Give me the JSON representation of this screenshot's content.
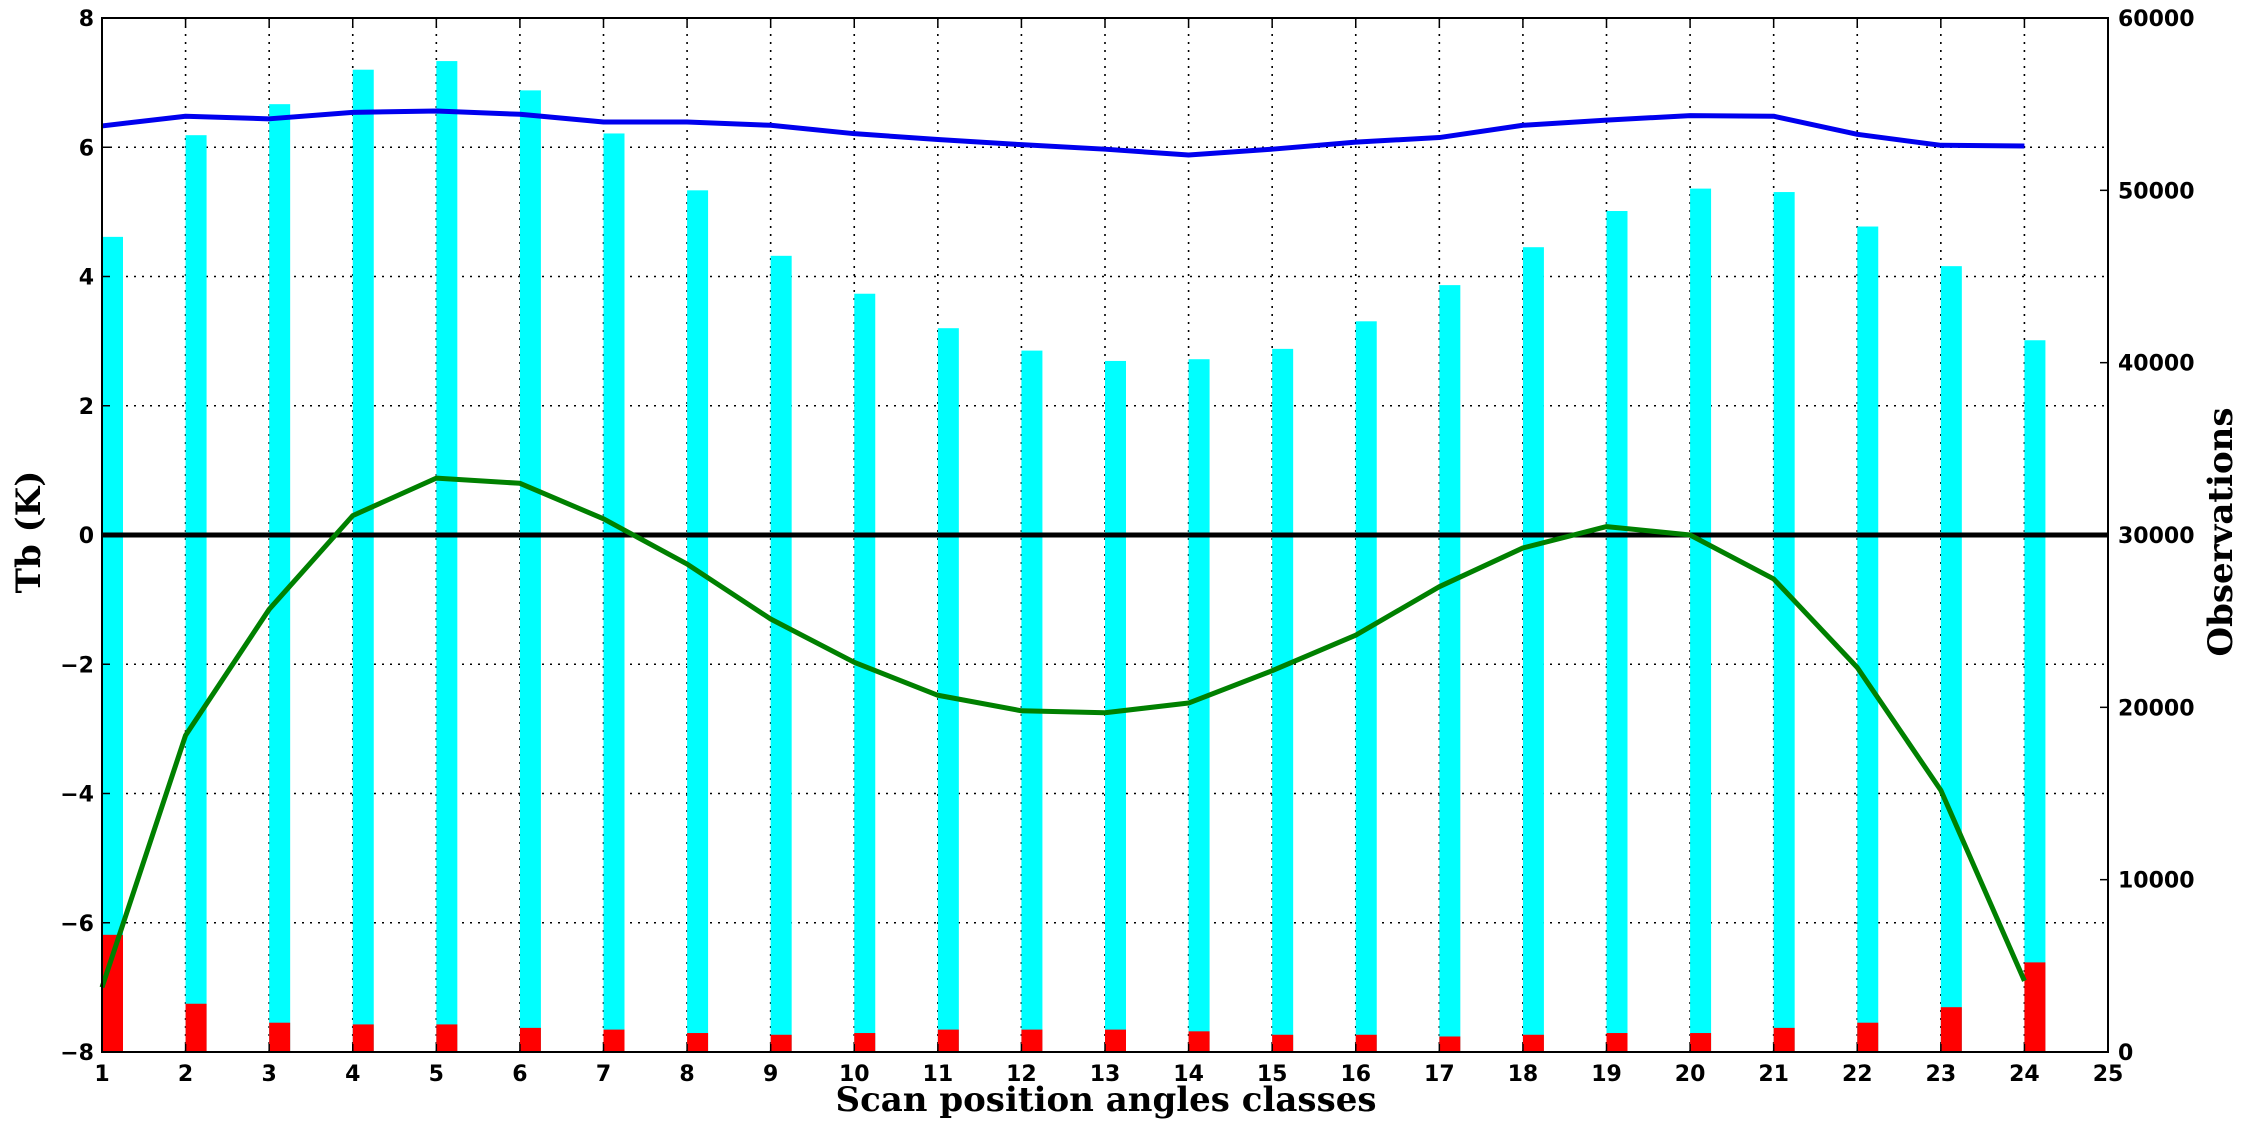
{
  "chart_data": {
    "type": "bar",
    "x": [
      1,
      2,
      3,
      4,
      5,
      6,
      7,
      8,
      9,
      10,
      11,
      12,
      13,
      14,
      15,
      16,
      17,
      18,
      19,
      20,
      21,
      22,
      23,
      24
    ],
    "xlabel": "Scan position angles classes",
    "ylabel": "Tb (K)",
    "y2label": "Observations",
    "xlim": [
      1,
      25
    ],
    "ylim": [
      -8,
      8
    ],
    "y2lim": [
      0,
      60000
    ],
    "xticks": [
      "1",
      "2",
      "3",
      "4",
      "5",
      "6",
      "7",
      "8",
      "9",
      "10",
      "11",
      "12",
      "13",
      "14",
      "15",
      "16",
      "17",
      "18",
      "19",
      "20",
      "21",
      "22",
      "23",
      "24",
      "25"
    ],
    "yticks": [
      "−8",
      "−6",
      "−4",
      "−2",
      "0",
      "2",
      "4",
      "6",
      "8"
    ],
    "y2ticks": [
      "0",
      "10000",
      "20000",
      "30000",
      "40000",
      "50000",
      "60000"
    ],
    "grid": true,
    "zero_line": 0,
    "series": [
      {
        "kind": "bar",
        "axis": "right",
        "color": "#00ffff",
        "values": [
          47300,
          53200,
          55000,
          57000,
          57500,
          55800,
          53300,
          50000,
          46200,
          44000,
          42000,
          40700,
          40100,
          40200,
          40800,
          42400,
          44500,
          46700,
          48800,
          50100,
          49900,
          47900,
          45600,
          41300
        ]
      },
      {
        "kind": "bar",
        "axis": "right",
        "color": "#ff0000",
        "values": [
          6800,
          2800,
          1700,
          1600,
          1600,
          1400,
          1300,
          1100,
          1000,
          1100,
          1300,
          1300,
          1300,
          1200,
          1000,
          1000,
          900,
          1000,
          1100,
          1100,
          1400,
          1700,
          2600,
          5200
        ]
      },
      {
        "kind": "line",
        "axis": "left",
        "color": "#0000ee",
        "values": [
          6.33,
          6.48,
          6.44,
          6.54,
          6.56,
          6.51,
          6.39,
          6.39,
          6.34,
          6.21,
          6.12,
          6.04,
          5.97,
          5.88,
          5.97,
          6.08,
          6.15,
          6.34,
          6.42,
          6.49,
          6.48,
          6.2,
          6.03,
          6.02
        ]
      },
      {
        "kind": "line",
        "axis": "left",
        "color": "#008000",
        "values": [
          -7.0,
          -3.1,
          -1.15,
          0.3,
          0.88,
          0.8,
          0.25,
          -0.45,
          -1.3,
          -1.97,
          -2.48,
          -2.72,
          -2.75,
          -2.6,
          -2.1,
          -1.55,
          -0.8,
          -0.2,
          0.13,
          0.0,
          -0.68,
          -2.05,
          -3.95,
          -6.9
        ]
      }
    ]
  }
}
